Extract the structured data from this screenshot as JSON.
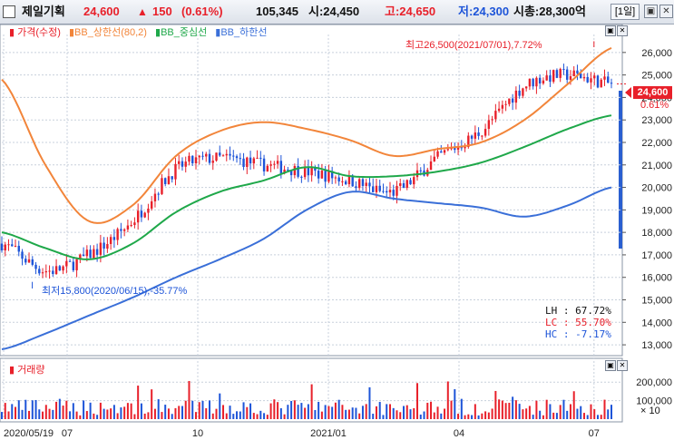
{
  "header": {
    "name": "제일기획",
    "price": "24,600",
    "change_arrow": "▲",
    "change": "150",
    "change_pct": "(0.61%)",
    "volume": "105,345",
    "open": "시:24,450",
    "high": "고:24,650",
    "low": "저:24,300",
    "market_cap": "시총:28,300억",
    "period": "[1일]"
  },
  "legend": {
    "price": "가격(수정)",
    "upper": "BB_상한선(80,2)",
    "middle": "BB_중심선",
    "lower": "BB_하한선"
  },
  "volume_legend": "거래량",
  "annotations": {
    "high": "최고26,500(2021/07/01),7.72%",
    "low": "최저15,800(2020/06/15),-35.77%",
    "lh": "LH : 67.72%",
    "lc": "LC : 55.70%",
    "hc": "HC : -7.17%",
    "price_tag": "24,600",
    "pct_tag": "0.61%",
    "vol_unit": "× 10"
  },
  "colors": {
    "up": "#e8202a",
    "down": "#1d54d8",
    "upper_band": "#f2853a",
    "middle_band": "#1fa84a",
    "lower_band": "#3a6fd8",
    "header_bg": "#dde2ea"
  },
  "chart_data": [
    {
      "type": "line",
      "subtype": "candlestick_with_bollinger",
      "x": [
        "2020/05/19",
        "2020/06",
        "2020/07",
        "2020/08",
        "2020/09",
        "2020/10",
        "2020/11",
        "2020/12",
        "2021/01",
        "2021/02",
        "2021/03",
        "2021/04",
        "2021/05",
        "2021/06",
        "2021/07"
      ],
      "xticks": [
        "2020/05/19",
        "07",
        "10",
        "2021/01",
        "04",
        "07"
      ],
      "yticks": [
        13000,
        14000,
        15000,
        16000,
        17000,
        18000,
        19000,
        20000,
        21000,
        22000,
        23000,
        24000,
        25000,
        26000
      ],
      "ytick_labels": [
        "13,000",
        "14,000",
        "15,000",
        "16,000",
        "17,000",
        "18,000",
        "19,000",
        "20,000",
        "21,000",
        "22,000",
        "23,000",
        "24,000",
        "25,000",
        "26,000"
      ],
      "ylim": [
        12600,
        26800
      ],
      "series": [
        {
          "name": "가격(수정)",
          "values": [
            17500,
            16300,
            17000,
            18500,
            20800,
            21300,
            21000,
            20700,
            20300,
            19800,
            21300,
            22500,
            24500,
            25000,
            24600
          ]
        },
        {
          "name": "BB_상한선(80,2)",
          "values": [
            24800,
            21000,
            18500,
            19200,
            21400,
            22500,
            22900,
            22600,
            22100,
            21400,
            21700,
            22000,
            23000,
            24600,
            26200
          ]
        },
        {
          "name": "BB_중심선",
          "values": [
            18000,
            17300,
            16800,
            17500,
            18900,
            19800,
            20300,
            20900,
            20500,
            20500,
            20700,
            21100,
            21800,
            22600,
            23200
          ]
        },
        {
          "name": "BB_하한선",
          "values": [
            12800,
            13500,
            14300,
            15100,
            16000,
            16800,
            17700,
            19000,
            19800,
            19500,
            19300,
            19100,
            18700,
            19200,
            20000
          ]
        }
      ],
      "high_point": {
        "date": "2021/07/01",
        "value": 26500
      },
      "low_point": {
        "date": "2020/06/15",
        "value": 15800
      },
      "last_price": 24600
    },
    {
      "type": "bar",
      "title": "거래량",
      "yticks": [
        100000,
        200000
      ],
      "ytick_labels": [
        "100,000",
        "200,000"
      ],
      "ylim": [
        0,
        260000
      ]
    }
  ]
}
